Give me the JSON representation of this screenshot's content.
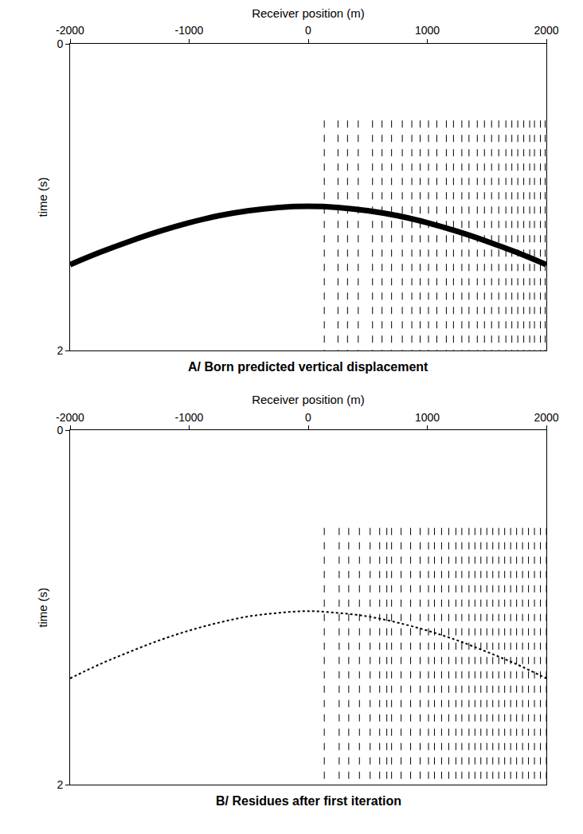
{
  "chart_data": [
    {
      "type": "line",
      "title": "A/ Born predicted vertical displacement",
      "x_label": "Receiver position (m)",
      "y_label": "time (s)",
      "xlim": [
        -2000,
        2000
      ],
      "xticks": [
        -2000,
        -1000,
        0,
        1000,
        2000
      ],
      "ylim": [
        2,
        0
      ],
      "yticks": [
        0,
        2
      ],
      "grid": false,
      "series": [
        {
          "type": "line",
          "color": "#000000",
          "line_style": "solid",
          "x": [
            -2000,
            -1750,
            -1500,
            -1250,
            -1000,
            -750,
            -500,
            -250,
            0,
            250,
            500,
            750,
            1000,
            1250,
            1500,
            1750,
            2000
          ],
          "values": [
            1.44,
            1.36,
            1.288,
            1.223,
            1.167,
            1.121,
            1.088,
            1.067,
            1.06,
            1.067,
            1.088,
            1.121,
            1.167,
            1.223,
            1.288,
            1.36,
            1.44
          ]
        },
        {
          "type": "rule",
          "color": "#000000",
          "line_style": "dash",
          "x": [
            135,
            250,
            330,
            420,
            540,
            620,
            700,
            790,
            870,
            940,
            1010,
            1080,
            1160,
            1220,
            1290,
            1350,
            1420,
            1480,
            1540,
            1600,
            1660,
            1710,
            1760,
            1810,
            1860,
            1900,
            1950,
            1990
          ],
          "from": 0.5,
          "to": 2
        }
      ]
    },
    {
      "type": "line",
      "title": "B/ Residues after first iteration",
      "x_label": "Receiver position (m)",
      "y_label": "time (s)",
      "xlim": [
        -2000,
        2000
      ],
      "xticks": [
        -2000,
        -1000,
        0,
        1000,
        2000
      ],
      "ylim": [
        2,
        0
      ],
      "yticks": [
        0,
        2
      ],
      "grid": false,
      "series": [
        {
          "type": "line",
          "color": "#000000",
          "line_style": "dot",
          "x": [
            -2000,
            -1750,
            -1500,
            -1250,
            -1000,
            -750,
            -500,
            -250,
            0,
            250,
            500,
            750,
            1000,
            1250,
            1500,
            1750,
            2000
          ],
          "values": [
            1.4,
            1.32,
            1.25,
            1.185,
            1.13,
            1.085,
            1.05,
            1.03,
            1.02,
            1.03,
            1.05,
            1.085,
            1.13,
            1.185,
            1.25,
            1.32,
            1.4
          ]
        },
        {
          "type": "rule",
          "color": "#000000",
          "line_style": "dash",
          "x": [
            135,
            260,
            340,
            430,
            520,
            600,
            660,
            700,
            780,
            860,
            940,
            1010,
            1060,
            1120,
            1180,
            1240,
            1290,
            1350,
            1400,
            1450,
            1500,
            1550,
            1600,
            1650,
            1700,
            1750,
            1800,
            1850,
            1900,
            1950,
            2000
          ],
          "from": 0.55,
          "to": 2
        }
      ]
    }
  ]
}
